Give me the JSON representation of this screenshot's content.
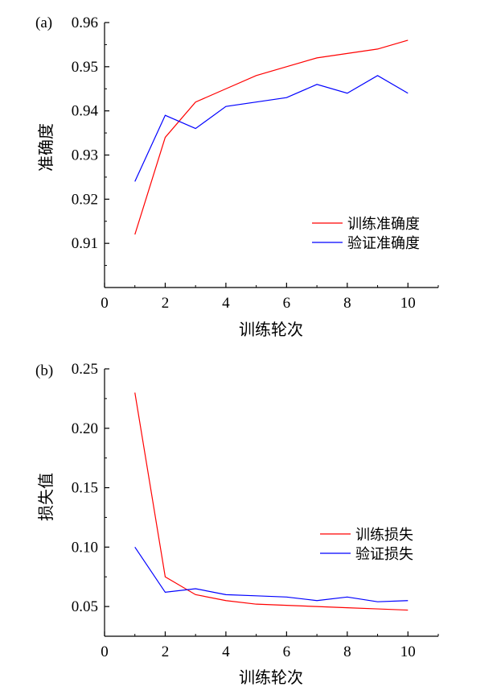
{
  "chart_data": [
    {
      "type": "line",
      "panel_label": "(a)",
      "title": "",
      "xlabel": "训练轮次",
      "ylabel": "准确度",
      "xlim": [
        0,
        11
      ],
      "ylim": [
        0.9,
        0.96
      ],
      "x_ticks": [
        0,
        2,
        4,
        6,
        8,
        10
      ],
      "y_ticks": [
        0.91,
        0.92,
        0.93,
        0.94,
        0.95,
        0.96
      ],
      "y_decimals": 2,
      "grid": false,
      "legend_position": "lower-right",
      "x": [
        1,
        2,
        3,
        4,
        5,
        6,
        7,
        8,
        9,
        10
      ],
      "series": [
        {
          "name": "训练准确度",
          "color": "#ff0000",
          "values": [
            0.912,
            0.934,
            0.942,
            0.945,
            0.948,
            0.95,
            0.952,
            0.953,
            0.954,
            0.956
          ]
        },
        {
          "name": "验证准确度",
          "color": "#0000ff",
          "values": [
            0.924,
            0.939,
            0.936,
            0.941,
            0.942,
            0.943,
            0.946,
            0.944,
            0.948,
            0.944
          ]
        }
      ]
    },
    {
      "type": "line",
      "panel_label": "(b)",
      "title": "",
      "xlabel": "训练轮次",
      "ylabel": "损失值",
      "xlim": [
        0,
        11
      ],
      "ylim": [
        0.025,
        0.25
      ],
      "x_ticks": [
        0,
        2,
        4,
        6,
        8,
        10
      ],
      "y_ticks": [
        0.05,
        0.1,
        0.15,
        0.2,
        0.25
      ],
      "y_decimals": 2,
      "grid": false,
      "legend_position": "center-right",
      "x": [
        1,
        2,
        3,
        4,
        5,
        6,
        7,
        8,
        9,
        10
      ],
      "series": [
        {
          "name": "训练损失",
          "color": "#ff0000",
          "values": [
            0.23,
            0.075,
            0.06,
            0.055,
            0.052,
            0.051,
            0.05,
            0.049,
            0.048,
            0.047
          ]
        },
        {
          "name": "验证损失",
          "color": "#0000ff",
          "values": [
            0.1,
            0.062,
            0.065,
            0.06,
            0.059,
            0.058,
            0.055,
            0.058,
            0.054,
            0.055
          ]
        }
      ]
    }
  ]
}
